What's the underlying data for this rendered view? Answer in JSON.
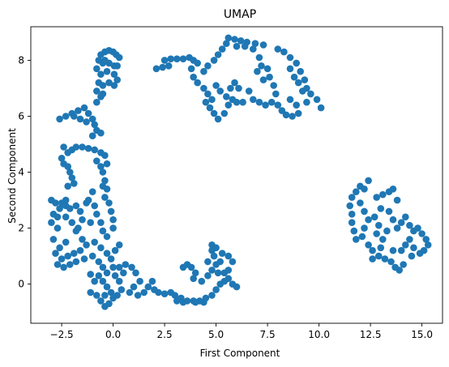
{
  "chart_data": {
    "type": "scatter",
    "title": "UMAP",
    "xlabel": "First Component",
    "ylabel": "Second Component",
    "xlim": [
      -4.0,
      16.0
    ],
    "ylim": [
      -1.4,
      9.2
    ],
    "xticks": [
      -2.5,
      0.0,
      2.5,
      5.0,
      7.5,
      10.0,
      12.5,
      15.0
    ],
    "xtick_labels": [
      "−2.5",
      "0.0",
      "2.5",
      "5.0",
      "7.5",
      "10.0",
      "12.5",
      "15.0"
    ],
    "yticks": [
      0,
      2,
      4,
      6,
      8
    ],
    "ytick_labels": [
      "0",
      "2",
      "4",
      "6",
      "8"
    ],
    "grid": false,
    "marker_color": "#1f77b4",
    "series": [
      {
        "points": [
          [
            -0.6,
            8.2
          ],
          [
            -0.4,
            8.3
          ],
          [
            -0.2,
            8.35
          ],
          [
            0.0,
            8.3
          ],
          [
            0.15,
            8.2
          ],
          [
            -0.7,
            8.0
          ],
          [
            -0.5,
            7.9
          ],
          [
            -0.2,
            7.9
          ],
          [
            0.05,
            7.8
          ],
          [
            -0.8,
            7.7
          ],
          [
            -0.6,
            7.5
          ],
          [
            -0.3,
            7.6
          ],
          [
            0.05,
            7.5
          ],
          [
            0.2,
            7.3
          ],
          [
            -0.7,
            7.2
          ],
          [
            -0.5,
            7.1
          ],
          [
            -0.2,
            7.2
          ],
          [
            0.05,
            7.1
          ],
          [
            -0.8,
            6.9
          ],
          [
            -0.5,
            6.8
          ],
          [
            -0.8,
            6.5
          ],
          [
            -0.6,
            6.7
          ],
          [
            0.2,
            7.8
          ],
          [
            0.3,
            8.1
          ],
          [
            -0.4,
            8.0
          ],
          [
            -2.6,
            5.9
          ],
          [
            -2.3,
            6.0
          ],
          [
            -2.0,
            6.1
          ],
          [
            -1.7,
            6.2
          ],
          [
            -1.4,
            6.3
          ],
          [
            -1.2,
            6.1
          ],
          [
            -1.0,
            5.9
          ],
          [
            -0.9,
            5.7
          ],
          [
            -0.8,
            5.5
          ],
          [
            -1.0,
            5.3
          ],
          [
            -1.3,
            5.8
          ],
          [
            -1.6,
            5.9
          ],
          [
            -1.9,
            6.0
          ],
          [
            -0.6,
            5.4
          ],
          [
            -2.4,
            4.9
          ],
          [
            -2.2,
            4.7
          ],
          [
            -2.0,
            4.8
          ],
          [
            -1.8,
            4.9
          ],
          [
            -1.5,
            4.9
          ],
          [
            -1.2,
            4.85
          ],
          [
            -0.9,
            4.8
          ],
          [
            -0.6,
            4.7
          ],
          [
            -0.4,
            4.6
          ],
          [
            -0.3,
            4.3
          ],
          [
            -2.5,
            4.5
          ],
          [
            -2.4,
            4.3
          ],
          [
            -2.2,
            4.2
          ],
          [
            -2.1,
            4.0
          ],
          [
            -2.0,
            3.8
          ],
          [
            -1.9,
            3.6
          ],
          [
            -0.8,
            4.4
          ],
          [
            -0.6,
            4.2
          ],
          [
            -0.5,
            4.0
          ],
          [
            -0.4,
            3.7
          ],
          [
            -0.3,
            3.4
          ],
          [
            -0.4,
            3.1
          ],
          [
            -0.2,
            2.9
          ],
          [
            -0.1,
            2.6
          ],
          [
            0.0,
            2.3
          ],
          [
            -1.0,
            3.3
          ],
          [
            -1.2,
            3.0
          ],
          [
            -0.9,
            2.8
          ],
          [
            -0.8,
            2.5
          ],
          [
            -1.1,
            2.2
          ],
          [
            -3.0,
            3.0
          ],
          [
            -2.8,
            2.9
          ],
          [
            -2.6,
            2.7
          ],
          [
            -2.9,
            2.5
          ],
          [
            -3.0,
            2.2
          ],
          [
            -2.7,
            2.0
          ],
          [
            -2.5,
            2.9
          ],
          [
            -2.3,
            2.8
          ],
          [
            -2.1,
            2.7
          ],
          [
            -1.8,
            2.8
          ],
          [
            -1.6,
            2.6
          ],
          [
            -1.5,
            2.3
          ],
          [
            -1.7,
            2.0
          ],
          [
            -2.0,
            2.2
          ],
          [
            -2.3,
            2.4
          ],
          [
            -1.8,
            1.9
          ],
          [
            -1.5,
            1.6
          ],
          [
            -1.3,
            1.4
          ],
          [
            -1.6,
            1.2
          ],
          [
            -1.9,
            1.1
          ],
          [
            -2.2,
            1.0
          ],
          [
            -2.5,
            0.9
          ],
          [
            -2.7,
            0.7
          ],
          [
            -2.4,
            0.6
          ],
          [
            -2.1,
            0.7
          ],
          [
            -1.8,
            0.8
          ],
          [
            -1.4,
            0.9
          ],
          [
            -1.0,
            1.0
          ],
          [
            -0.7,
            0.8
          ],
          [
            -0.5,
            0.6
          ],
          [
            -2.8,
            1.1
          ],
          [
            -2.6,
            1.3
          ],
          [
            -2.3,
            1.5
          ],
          [
            -1.1,
            0.35
          ],
          [
            -0.9,
            1.5
          ],
          [
            -0.6,
            1.3
          ],
          [
            -0.3,
            1.1
          ],
          [
            -0.1,
            0.9
          ],
          [
            0.1,
            1.2
          ],
          [
            0.3,
            1.4
          ],
          [
            -0.5,
            1.9
          ],
          [
            -0.3,
            1.7
          ],
          [
            0.0,
            2.0
          ],
          [
            -1.3,
            2.9
          ],
          [
            -2.9,
            1.6
          ],
          [
            -2.7,
            2.4
          ],
          [
            -2.2,
            3.5
          ],
          [
            -2.3,
            3.0
          ],
          [
            -0.5,
            3.5
          ],
          [
            -0.6,
            2.2
          ],
          [
            -0.7,
            0.3
          ],
          [
            -0.5,
            0.1
          ],
          [
            -0.3,
            -0.1
          ],
          [
            -0.1,
            -0.3
          ],
          [
            0.0,
            -0.5
          ],
          [
            -0.2,
            -0.7
          ],
          [
            -0.4,
            -0.8
          ],
          [
            -0.6,
            -0.6
          ],
          [
            -0.8,
            -0.4
          ],
          [
            -0.4,
            -0.4
          ],
          [
            0.2,
            -0.4
          ],
          [
            0.4,
            -0.2
          ],
          [
            0.3,
            0.1
          ],
          [
            0.1,
            0.3
          ],
          [
            0.0,
            0.6
          ],
          [
            0.3,
            0.6
          ],
          [
            0.5,
            0.4
          ],
          [
            -0.3,
            0.4
          ],
          [
            -1.1,
            -0.3
          ],
          [
            -0.9,
            0.1
          ],
          [
            0.9,
            0.6
          ],
          [
            1.1,
            0.4
          ],
          [
            1.3,
            0.1
          ],
          [
            1.0,
            -0.1
          ],
          [
            0.8,
            -0.3
          ],
          [
            1.2,
            -0.4
          ],
          [
            1.5,
            -0.3
          ],
          [
            1.7,
            -0.1
          ],
          [
            1.9,
            0.1
          ],
          [
            0.6,
            0.7
          ],
          [
            2.2,
            -0.3
          ],
          [
            2.5,
            -0.35
          ],
          [
            2.8,
            -0.3
          ],
          [
            3.0,
            -0.4
          ],
          [
            3.3,
            -0.5
          ],
          [
            3.6,
            -0.6
          ],
          [
            3.9,
            -0.6
          ],
          [
            4.2,
            -0.6
          ],
          [
            4.5,
            -0.5
          ],
          [
            4.8,
            -0.4
          ],
          [
            3.1,
            -0.6
          ],
          [
            3.4,
            -0.65
          ],
          [
            4.0,
            -0.65
          ],
          [
            4.4,
            -0.65
          ],
          [
            2.0,
            -0.2
          ],
          [
            5.0,
            -0.2
          ],
          [
            5.2,
            0.0
          ],
          [
            5.4,
            0.1
          ],
          [
            5.6,
            0.2
          ],
          [
            5.8,
            0.0
          ],
          [
            6.0,
            -0.1
          ],
          [
            4.6,
            0.3
          ],
          [
            4.8,
            0.5
          ],
          [
            5.0,
            0.7
          ],
          [
            5.2,
            0.8
          ],
          [
            4.9,
            1.0
          ],
          [
            4.6,
            0.8
          ],
          [
            4.8,
            1.2
          ],
          [
            4.8,
            1.4
          ],
          [
            5.0,
            1.3
          ],
          [
            5.3,
            1.1
          ],
          [
            5.6,
            1.0
          ],
          [
            5.8,
            0.8
          ],
          [
            5.6,
            0.5
          ],
          [
            5.4,
            0.4
          ],
          [
            3.4,
            0.6
          ],
          [
            3.6,
            0.7
          ],
          [
            3.8,
            0.6
          ],
          [
            4.0,
            0.4
          ],
          [
            3.9,
            0.2
          ],
          [
            4.3,
            0.1
          ],
          [
            5.1,
            0.4
          ],
          [
            2.1,
            7.7
          ],
          [
            2.4,
            7.75
          ],
          [
            2.7,
            7.8
          ],
          [
            2.5,
            8.0
          ],
          [
            2.8,
            8.05
          ],
          [
            3.1,
            8.05
          ],
          [
            3.4,
            8.05
          ],
          [
            3.7,
            8.1
          ],
          [
            3.9,
            8.0
          ],
          [
            4.1,
            7.9
          ],
          [
            3.8,
            7.7
          ],
          [
            3.9,
            7.4
          ],
          [
            4.1,
            7.2
          ],
          [
            4.4,
            7.6
          ],
          [
            4.6,
            7.8
          ],
          [
            4.9,
            8.0
          ],
          [
            5.1,
            8.2
          ],
          [
            5.3,
            8.4
          ],
          [
            5.5,
            8.6
          ],
          [
            5.6,
            8.8
          ],
          [
            5.9,
            8.75
          ],
          [
            6.2,
            8.7
          ],
          [
            6.5,
            8.65
          ],
          [
            6.9,
            8.6
          ],
          [
            7.3,
            8.55
          ],
          [
            6.0,
            8.5
          ],
          [
            6.4,
            8.5
          ],
          [
            6.8,
            8.4
          ],
          [
            7.1,
            8.1
          ],
          [
            7.2,
            7.8
          ],
          [
            7.5,
            7.7
          ],
          [
            7.6,
            7.4
          ],
          [
            7.8,
            7.1
          ],
          [
            7.9,
            6.8
          ],
          [
            7.7,
            6.5
          ],
          [
            7.4,
            6.4
          ],
          [
            7.1,
            6.5
          ],
          [
            6.8,
            6.6
          ],
          [
            6.6,
            6.9
          ],
          [
            7.3,
            7.3
          ],
          [
            7.0,
            7.6
          ],
          [
            4.4,
            7.0
          ],
          [
            4.6,
            6.8
          ],
          [
            4.8,
            6.6
          ],
          [
            4.7,
            6.3
          ],
          [
            4.9,
            6.1
          ],
          [
            5.1,
            5.9
          ],
          [
            5.4,
            6.1
          ],
          [
            5.6,
            6.4
          ],
          [
            5.8,
            6.6
          ],
          [
            6.0,
            6.5
          ],
          [
            6.3,
            6.5
          ],
          [
            5.5,
            6.7
          ],
          [
            5.2,
            6.9
          ],
          [
            5.0,
            7.1
          ],
          [
            5.7,
            7.0
          ],
          [
            5.9,
            7.2
          ],
          [
            6.1,
            7.0
          ],
          [
            4.5,
            6.5
          ],
          [
            8.0,
            8.4
          ],
          [
            8.3,
            8.3
          ],
          [
            8.6,
            8.1
          ],
          [
            8.9,
            7.9
          ],
          [
            9.1,
            7.6
          ],
          [
            9.3,
            7.3
          ],
          [
            9.4,
            7.0
          ],
          [
            9.6,
            6.8
          ],
          [
            9.9,
            6.6
          ],
          [
            10.1,
            6.3
          ],
          [
            9.0,
            7.2
          ],
          [
            8.8,
            7.4
          ],
          [
            8.6,
            7.7
          ],
          [
            9.2,
            6.9
          ],
          [
            8.2,
            6.2
          ],
          [
            8.4,
            6.05
          ],
          [
            8.7,
            6.0
          ],
          [
            9.0,
            6.1
          ],
          [
            8.0,
            6.4
          ],
          [
            8.9,
            6.4
          ],
          [
            8.6,
            6.6
          ],
          [
            9.4,
            6.5
          ],
          [
            11.6,
            3.1
          ],
          [
            11.8,
            3.3
          ],
          [
            12.0,
            3.5
          ],
          [
            12.2,
            3.4
          ],
          [
            12.4,
            3.7
          ],
          [
            12.8,
            3.1
          ],
          [
            13.1,
            3.2
          ],
          [
            13.4,
            3.3
          ],
          [
            13.6,
            3.4
          ],
          [
            13.8,
            3.0
          ],
          [
            11.5,
            2.8
          ],
          [
            11.6,
            2.5
          ],
          [
            11.6,
            2.2
          ],
          [
            11.7,
            1.9
          ],
          [
            11.8,
            1.6
          ],
          [
            12.0,
            2.9
          ],
          [
            12.2,
            2.6
          ],
          [
            12.4,
            2.3
          ],
          [
            12.2,
            2.0
          ],
          [
            12.1,
            1.7
          ],
          [
            12.4,
            1.4
          ],
          [
            12.6,
            1.2
          ],
          [
            12.9,
            1.0
          ],
          [
            13.2,
            0.9
          ],
          [
            13.5,
            0.8
          ],
          [
            13.7,
            0.6
          ],
          [
            13.9,
            0.5
          ],
          [
            14.1,
            0.7
          ],
          [
            13.1,
            1.6
          ],
          [
            13.3,
            1.9
          ],
          [
            12.9,
            2.1
          ],
          [
            12.7,
            2.4
          ],
          [
            13.0,
            2.7
          ],
          [
            12.8,
            1.8
          ],
          [
            13.4,
            2.6
          ],
          [
            13.6,
            2.3
          ],
          [
            13.8,
            2.0
          ],
          [
            14.0,
            2.2
          ],
          [
            14.2,
            2.4
          ],
          [
            14.4,
            2.1
          ],
          [
            14.6,
            1.9
          ],
          [
            14.8,
            2.0
          ],
          [
            15.0,
            1.8
          ],
          [
            15.2,
            1.6
          ],
          [
            15.3,
            1.4
          ],
          [
            15.1,
            1.2
          ],
          [
            14.9,
            1.1
          ],
          [
            14.6,
            1.3
          ],
          [
            14.4,
            1.6
          ],
          [
            14.2,
            1.4
          ],
          [
            14.0,
            1.2
          ],
          [
            14.5,
            1.0
          ],
          [
            12.6,
            0.9
          ],
          [
            13.0,
            1.3
          ],
          [
            13.6,
            1.2
          ]
        ]
      }
    ]
  }
}
